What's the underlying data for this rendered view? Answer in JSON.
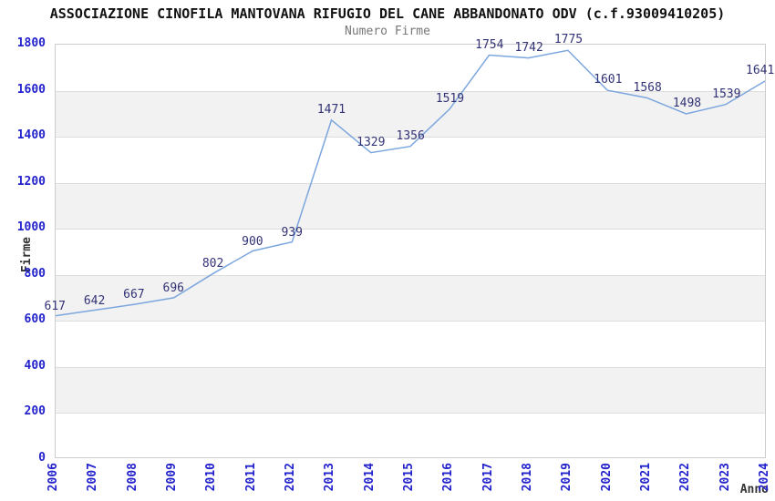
{
  "chart_data": {
    "type": "line",
    "title": "ASSOCIAZIONE CINOFILA MANTOVANA RIFUGIO DEL CANE ABBANDONATO ODV (c.f.93009410205)",
    "subtitle": "Numero Firme",
    "xlabel": "Anno",
    "ylabel": "Firme",
    "categories": [
      "2006",
      "2007",
      "2008",
      "2009",
      "2010",
      "2011",
      "2012",
      "2013",
      "2014",
      "2015",
      "2016",
      "2017",
      "2018",
      "2019",
      "2020",
      "2021",
      "2022",
      "2023",
      "2024"
    ],
    "series": [
      {
        "name": "Numero Firme",
        "values": [
          617,
          642,
          667,
          696,
          802,
          900,
          939,
          1471,
          1329,
          1356,
          1519,
          1754,
          1742,
          1775,
          1601,
          1568,
          1498,
          1539,
          1641
        ]
      }
    ],
    "ylim": [
      0,
      1800
    ],
    "ytick_step": 200,
    "grid": true,
    "banding": "alternating horizontal gray bands every 200 units",
    "point_labels_shown": true,
    "legend_position": "none",
    "colors": {
      "line": "#7ca6de",
      "point_label": "#333377",
      "tick_label": "#2222cc",
      "band": "#f2f2f2",
      "grid_line": "#dddddd",
      "plot_border": "#cccccc",
      "title": "#111111",
      "subtitle": "#777777",
      "axis_title": "#333333",
      "background": "#ffffff"
    }
  }
}
